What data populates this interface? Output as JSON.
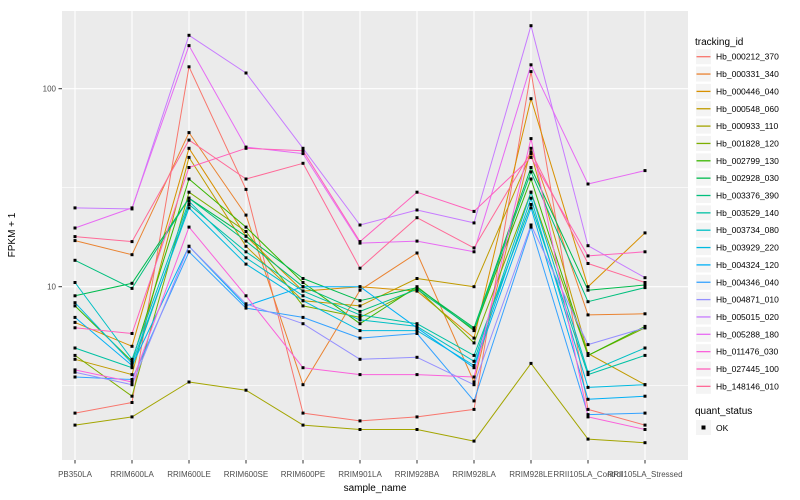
{
  "figure": {
    "background": "#FFFFFF",
    "panel_background": "#EBEBEB",
    "grid_color": "#FFFFFF",
    "axis_text_color": "#4D4D4D",
    "tick_mark_color": "#333333",
    "title_text_color": "#000000",
    "legend_key_background": "#F4F4F4"
  },
  "chart_data": {
    "type": "line",
    "title": "",
    "xlabel": "sample_name",
    "ylabel": "FPKM + 1",
    "y_scale": "log10",
    "ylim": [
      1.35,
      240
    ],
    "y_major_ticks": [
      10,
      100
    ],
    "y_minor_gridlines": [
      3.162,
      31.623
    ],
    "grid": true,
    "legend_position": "right",
    "marker": {
      "shape": "square",
      "color": "#000000",
      "size": 3
    },
    "categories": [
      "PB350LA",
      "RRIM600LA",
      "RRIM600LE",
      "RRIM600SE",
      "RRIM600PE",
      "RRIM901LA",
      "RRIM928BA",
      "RRIM928LA",
      "RRIM928LE",
      "RRII105LA_Control",
      "RRII105LA_Stressed"
    ],
    "legend_title": "tracking_id",
    "series": [
      {
        "name": "Hb_000212_370",
        "color": "#F8766D",
        "values": [
          2.3,
          2.6,
          129,
          31,
          2.3,
          2.1,
          2.2,
          2.4,
          122,
          2.4,
          2.0
        ]
      },
      {
        "name": "Hb_000331_340",
        "color": "#EA8331",
        "values": [
          17.1,
          14.5,
          60,
          23,
          3.2,
          9.6,
          14.8,
          3.3,
          50,
          7.2,
          7.3
        ]
      },
      {
        "name": "Hb_000446_040",
        "color": "#D89000",
        "values": [
          6.6,
          5.0,
          50,
          18,
          9.5,
          10.0,
          9.5,
          5.5,
          89,
          10.0,
          18.7
        ]
      },
      {
        "name": "Hb_000548_060",
        "color": "#C09B00",
        "values": [
          4.3,
          3.6,
          45,
          16,
          8.5,
          8.0,
          11.0,
          10.0,
          47,
          4.6,
          3.2
        ]
      },
      {
        "name": "Hb_000933_110",
        "color": "#A3A500",
        "values": [
          2.0,
          2.2,
          3.3,
          3.0,
          2.0,
          1.9,
          1.9,
          1.66,
          4.1,
          1.7,
          1.63
        ]
      },
      {
        "name": "Hb_001828_120",
        "color": "#7CAE00",
        "values": [
          4.5,
          2.8,
          30,
          19,
          8.0,
          7.0,
          9.8,
          5.2,
          30,
          4.5,
          6.2
        ]
      },
      {
        "name": "Hb_002799_130",
        "color": "#39B600",
        "values": [
          8.0,
          4.2,
          35,
          20,
          10.5,
          6.5,
          10.0,
          6.0,
          35,
          4.5,
          6.3
        ]
      },
      {
        "name": "Hb_002928_030",
        "color": "#00BB4E",
        "values": [
          9.0,
          10.4,
          28,
          18,
          11.0,
          8.5,
          9.9,
          6.2,
          40,
          9.6,
          10.2
        ]
      },
      {
        "name": "Hb_003376_390",
        "color": "#00BF7D",
        "values": [
          13.6,
          9.8,
          28,
          17,
          10.0,
          7.5,
          9.7,
          6.1,
          38,
          8.4,
          9.9
        ]
      },
      {
        "name": "Hb_003529_140",
        "color": "#00C1A3",
        "values": [
          4.9,
          3.9,
          26,
          15,
          9.5,
          7.2,
          6.5,
          4.5,
          26,
          3.6,
          4.5
        ]
      },
      {
        "name": "Hb_003734_080",
        "color": "#00BFC4",
        "values": [
          10.5,
          4.3,
          27,
          14,
          9.0,
          6.8,
          6.3,
          4.2,
          30,
          3.7,
          4.9
        ]
      },
      {
        "name": "Hb_003929_220",
        "color": "#00BAE0",
        "values": [
          8.3,
          4.1,
          25,
          13,
          8.5,
          6.0,
          6.0,
          4.0,
          28,
          3.1,
          3.2
        ]
      },
      {
        "name": "Hb_004324_120",
        "color": "#00B0F6",
        "values": [
          7.0,
          4.0,
          16,
          8.0,
          10.0,
          10.0,
          6.2,
          3.9,
          25,
          2.7,
          2.8
        ]
      },
      {
        "name": "Hb_004346_040",
        "color": "#35A2FF",
        "values": [
          3.5,
          3.4,
          15,
          7.8,
          7.0,
          5.5,
          5.8,
          2.65,
          20,
          2.26,
          2.3
        ]
      },
      {
        "name": "Hb_004871_010",
        "color": "#9590FF",
        "values": [
          3.7,
          3.2,
          16,
          8.2,
          6.5,
          4.3,
          4.4,
          3.2,
          20.5,
          5.1,
          6.2
        ]
      },
      {
        "name": "Hb_005015_020",
        "color": "#C77CFF",
        "values": [
          25.0,
          24.7,
          186,
          120,
          50,
          20.5,
          24.4,
          21,
          208,
          16.1,
          11.1
        ]
      },
      {
        "name": "Hb_005288_180",
        "color": "#E76BF3",
        "values": [
          19.8,
          25.0,
          165,
          50.7,
          47,
          16.6,
          17,
          15,
          132,
          33,
          38.6
        ]
      },
      {
        "name": "Hb_011476_030",
        "color": "#FA62DB",
        "values": [
          3.8,
          3.3,
          20,
          9.0,
          3.9,
          3.6,
          3.6,
          3.5,
          56,
          2.2,
          1.9
        ]
      },
      {
        "name": "Hb_027445_100",
        "color": "#FF62BC",
        "values": [
          6.2,
          5.8,
          40,
          50,
          48.6,
          16.9,
          30,
          24,
          45,
          14.3,
          15
        ]
      },
      {
        "name": "Hb_148146_010",
        "color": "#FF6A98",
        "values": [
          17.9,
          16.9,
          55,
          35,
          42,
          12.4,
          22.3,
          15.7,
          48,
          13.1,
          10.5
        ]
      }
    ],
    "quant_legend": {
      "title": "quant_status",
      "items": [
        {
          "label": "OK",
          "marker": "black-square"
        }
      ]
    }
  }
}
